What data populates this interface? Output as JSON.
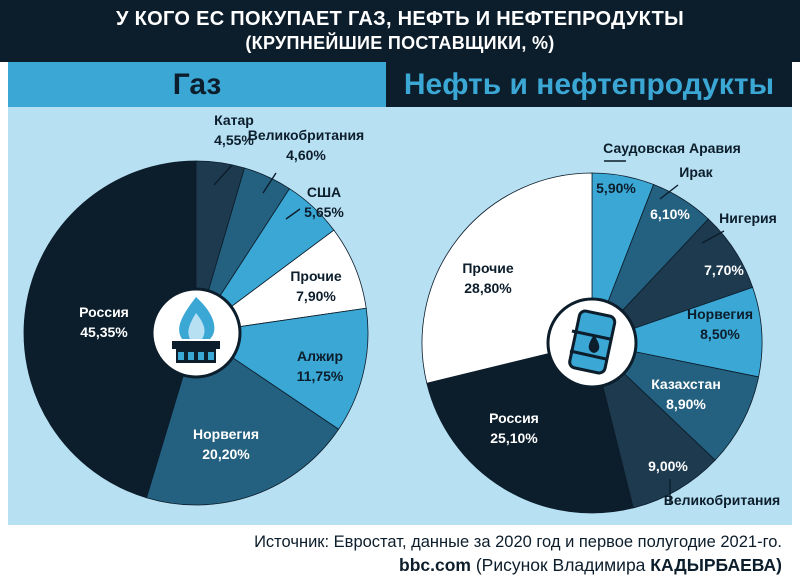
{
  "header": {
    "title": "У КОГО ЕС ПОКУПАЕТ ГАЗ, НЕФТЬ И НЕФТЕПРОДУКТЫ",
    "subtitle": "(КРУПНЕЙШИЕ ПОСТАВЩИКИ, %)"
  },
  "sections": {
    "gas": "Газ",
    "oil": "Нефть и нефтепродукты"
  },
  "colors": {
    "dark": "#0c1d2b",
    "dark2": "#1d3a4f",
    "mid": "#24607f",
    "light": "#3ba7d5",
    "white": "#ffffff",
    "background": "#b7e0f2"
  },
  "icons": [
    "gas-flame-icon",
    "oil-barrel-icon"
  ],
  "chart_data": [
    {
      "type": "pie",
      "title": "Газ",
      "slices": [
        {
          "name": "Катар",
          "value": 4.55,
          "label": "4,55%",
          "color": "#1d3a4f"
        },
        {
          "name": "Великобритания",
          "value": 4.6,
          "label": "4,60%",
          "color": "#24607f"
        },
        {
          "name": "США",
          "value": 5.65,
          "label": "5,65%",
          "color": "#3ba7d5"
        },
        {
          "name": "Прочие",
          "value": 7.9,
          "label": "7,90%",
          "color": "#ffffff"
        },
        {
          "name": "Алжир",
          "value": 11.75,
          "label": "11,75%",
          "color": "#3ba7d5"
        },
        {
          "name": "Норвегия",
          "value": 20.2,
          "label": "20,20%",
          "color": "#24607f"
        },
        {
          "name": "Россия",
          "value": 45.35,
          "label": "45,35%",
          "color": "#0c1d2b"
        }
      ]
    },
    {
      "type": "pie",
      "title": "Нефть и нефтепродукты",
      "slices": [
        {
          "name": "Саудовская Аравия",
          "value": 5.9,
          "label": "5,90%",
          "color": "#3ba7d5"
        },
        {
          "name": "Ирак",
          "value": 6.1,
          "label": "6,10%",
          "color": "#24607f"
        },
        {
          "name": "Нигерия",
          "value": 7.7,
          "label": "7,70%",
          "color": "#1d3a4f"
        },
        {
          "name": "Норвегия",
          "value": 8.5,
          "label": "8,50%",
          "color": "#3ba7d5"
        },
        {
          "name": "Казахстан",
          "value": 8.9,
          "label": "8,90%",
          "color": "#24607f"
        },
        {
          "name": "Великобритания",
          "value": 9.0,
          "label": "9,00%",
          "color": "#1d3a4f"
        },
        {
          "name": "Россия",
          "value": 25.1,
          "label": "25,10%",
          "color": "#0c1d2b"
        },
        {
          "name": "Прочие",
          "value": 28.8,
          "label": "28,80%",
          "color": "#ffffff"
        }
      ]
    }
  ],
  "footer": {
    "source": "Источник: Евростат, данные за 2020 год и первое полугодие 2021-го.",
    "credit_site": "bbc.com",
    "credit_text": "(Рисунок Владимира",
    "credit_author": "КАДЫРБАЕВА)"
  }
}
